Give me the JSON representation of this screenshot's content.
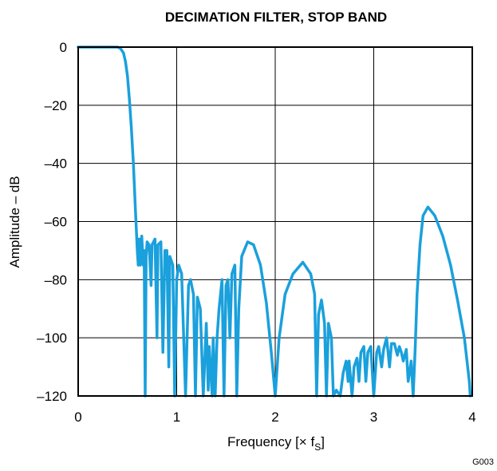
{
  "chart_data": {
    "type": "line",
    "title": "DECIMATION FILTER, STOP BAND",
    "xlabel_main": "Frequency [× f",
    "xlabel_sub": "S",
    "xlabel_end": "]",
    "ylabel": "Amplitude – dB",
    "figure_code": "G003",
    "xlim": [
      0,
      4
    ],
    "ylim": [
      -120,
      0
    ],
    "x_ticks": [
      0,
      1,
      2,
      3,
      4
    ],
    "x_tick_labels": [
      "0",
      "1",
      "2",
      "3",
      "4"
    ],
    "y_ticks": [
      0,
      -20,
      -40,
      -60,
      -80,
      -100,
      -120
    ],
    "y_tick_labels": [
      "0",
      "–20",
      "–40",
      "–60",
      "–80",
      "–100",
      "–120"
    ],
    "grid": true,
    "line_color": "#1aa0dc",
    "series": [
      {
        "points": [
          [
            0.0,
            0
          ],
          [
            0.4,
            0
          ],
          [
            0.43,
            -0.5
          ],
          [
            0.46,
            -2
          ],
          [
            0.48,
            -5
          ],
          [
            0.5,
            -10
          ],
          [
            0.52,
            -18
          ],
          [
            0.54,
            -28
          ],
          [
            0.56,
            -40
          ],
          [
            0.58,
            -55
          ],
          [
            0.6,
            -70
          ],
          [
            0.61,
            -75
          ],
          [
            0.62,
            -66
          ],
          [
            0.63,
            -75
          ],
          [
            0.645,
            -65
          ],
          [
            0.66,
            -75
          ],
          [
            0.67,
            -70
          ],
          [
            0.68,
            -120
          ],
          [
            0.69,
            -72
          ],
          [
            0.7,
            -67
          ],
          [
            0.72,
            -68
          ],
          [
            0.74,
            -82
          ],
          [
            0.75,
            -68
          ],
          [
            0.78,
            -66
          ],
          [
            0.8,
            -100
          ],
          [
            0.81,
            -68
          ],
          [
            0.84,
            -67
          ],
          [
            0.86,
            -105
          ],
          [
            0.88,
            -70
          ],
          [
            0.9,
            -70
          ],
          [
            0.92,
            -110
          ],
          [
            0.93,
            -72
          ],
          [
            0.96,
            -75
          ],
          [
            0.98,
            -120
          ],
          [
            1.0,
            -80
          ],
          [
            1.02,
            -75
          ],
          [
            1.05,
            -78
          ],
          [
            1.09,
            -120
          ],
          [
            1.12,
            -82
          ],
          [
            1.14,
            -80
          ],
          [
            1.17,
            -85
          ],
          [
            1.19,
            -120
          ],
          [
            1.21,
            -86
          ],
          [
            1.24,
            -90
          ],
          [
            1.27,
            -120
          ],
          [
            1.3,
            -95
          ],
          [
            1.32,
            -118
          ],
          [
            1.33,
            -103
          ],
          [
            1.36,
            -120
          ],
          [
            1.37,
            -100
          ],
          [
            1.39,
            -120
          ],
          [
            1.41,
            -100
          ],
          [
            1.43,
            -90
          ],
          [
            1.46,
            -80
          ],
          [
            1.48,
            -120
          ],
          [
            1.5,
            -82
          ],
          [
            1.52,
            -80
          ],
          [
            1.54,
            -100
          ],
          [
            1.56,
            -78
          ],
          [
            1.59,
            -75
          ],
          [
            1.61,
            -120
          ],
          [
            1.63,
            -90
          ],
          [
            1.66,
            -72
          ],
          [
            1.72,
            -67
          ],
          [
            1.78,
            -68
          ],
          [
            1.85,
            -75
          ],
          [
            1.91,
            -88
          ],
          [
            1.96,
            -105
          ],
          [
            2.0,
            -120
          ],
          [
            2.04,
            -100
          ],
          [
            2.1,
            -85
          ],
          [
            2.18,
            -78
          ],
          [
            2.28,
            -74
          ],
          [
            2.36,
            -78
          ],
          [
            2.4,
            -85
          ],
          [
            2.42,
            -120
          ],
          [
            2.44,
            -92
          ],
          [
            2.47,
            -87
          ],
          [
            2.5,
            -95
          ],
          [
            2.52,
            -120
          ],
          [
            2.54,
            -95
          ],
          [
            2.57,
            -100
          ],
          [
            2.59,
            -120
          ],
          [
            2.62,
            -118
          ],
          [
            2.66,
            -120
          ],
          [
            2.69,
            -112
          ],
          [
            2.72,
            -108
          ],
          [
            2.74,
            -115
          ],
          [
            2.75,
            -108
          ],
          [
            2.78,
            -120
          ],
          [
            2.8,
            -110
          ],
          [
            2.83,
            -107
          ],
          [
            2.85,
            -115
          ],
          [
            2.87,
            -105
          ],
          [
            2.9,
            -103
          ],
          [
            2.92,
            -115
          ],
          [
            2.94,
            -105
          ],
          [
            2.97,
            -103
          ],
          [
            3.0,
            -120
          ],
          [
            3.03,
            -105
          ],
          [
            3.05,
            -103
          ],
          [
            3.08,
            -110
          ],
          [
            3.1,
            -104
          ],
          [
            3.13,
            -100
          ],
          [
            3.16,
            -110
          ],
          [
            3.18,
            -102
          ],
          [
            3.21,
            -102
          ],
          [
            3.24,
            -106
          ],
          [
            3.26,
            -103
          ],
          [
            3.28,
            -105
          ],
          [
            3.3,
            -108
          ],
          [
            3.33,
            -104
          ],
          [
            3.35,
            -115
          ],
          [
            3.38,
            -108
          ],
          [
            3.4,
            -120
          ],
          [
            3.42,
            -104
          ],
          [
            3.44,
            -85
          ],
          [
            3.47,
            -68
          ],
          [
            3.5,
            -58
          ],
          [
            3.55,
            -55
          ],
          [
            3.62,
            -58
          ],
          [
            3.7,
            -65
          ],
          [
            3.78,
            -75
          ],
          [
            3.85,
            -87
          ],
          [
            3.92,
            -100
          ],
          [
            3.97,
            -115
          ],
          [
            3.98,
            -120
          ]
        ]
      }
    ]
  }
}
